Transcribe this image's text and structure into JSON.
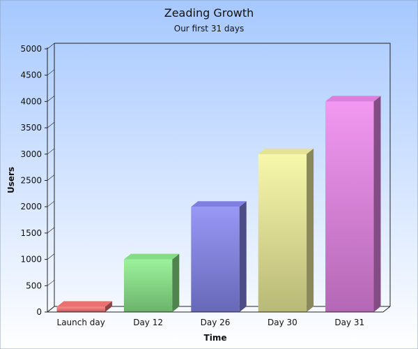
{
  "chart_data": {
    "type": "bar",
    "title": "Zeading Growth",
    "subtitle": "Our first 31 days",
    "xlabel": "Time",
    "ylabel": "Users",
    "categories": [
      "Launch day",
      "Day 12",
      "Day 26",
      "Day 30",
      "Day 31"
    ],
    "values": [
      100,
      1000,
      2000,
      3000,
      4000
    ],
    "ylim": [
      0,
      5000
    ],
    "yticks": [
      "0",
      "500",
      "1000",
      "1500",
      "2000",
      "2500",
      "3000",
      "3500",
      "4000",
      "4500",
      "5000"
    ],
    "grid": false,
    "legend": "none",
    "style": "3d-bar",
    "colors": [
      "#ff7a7a",
      "#8ff08f",
      "#8a8af5",
      "#f7f7a0",
      "#f08af0"
    ],
    "background": {
      "top": "#a6c8ff",
      "bottom": "#ffffff"
    }
  }
}
